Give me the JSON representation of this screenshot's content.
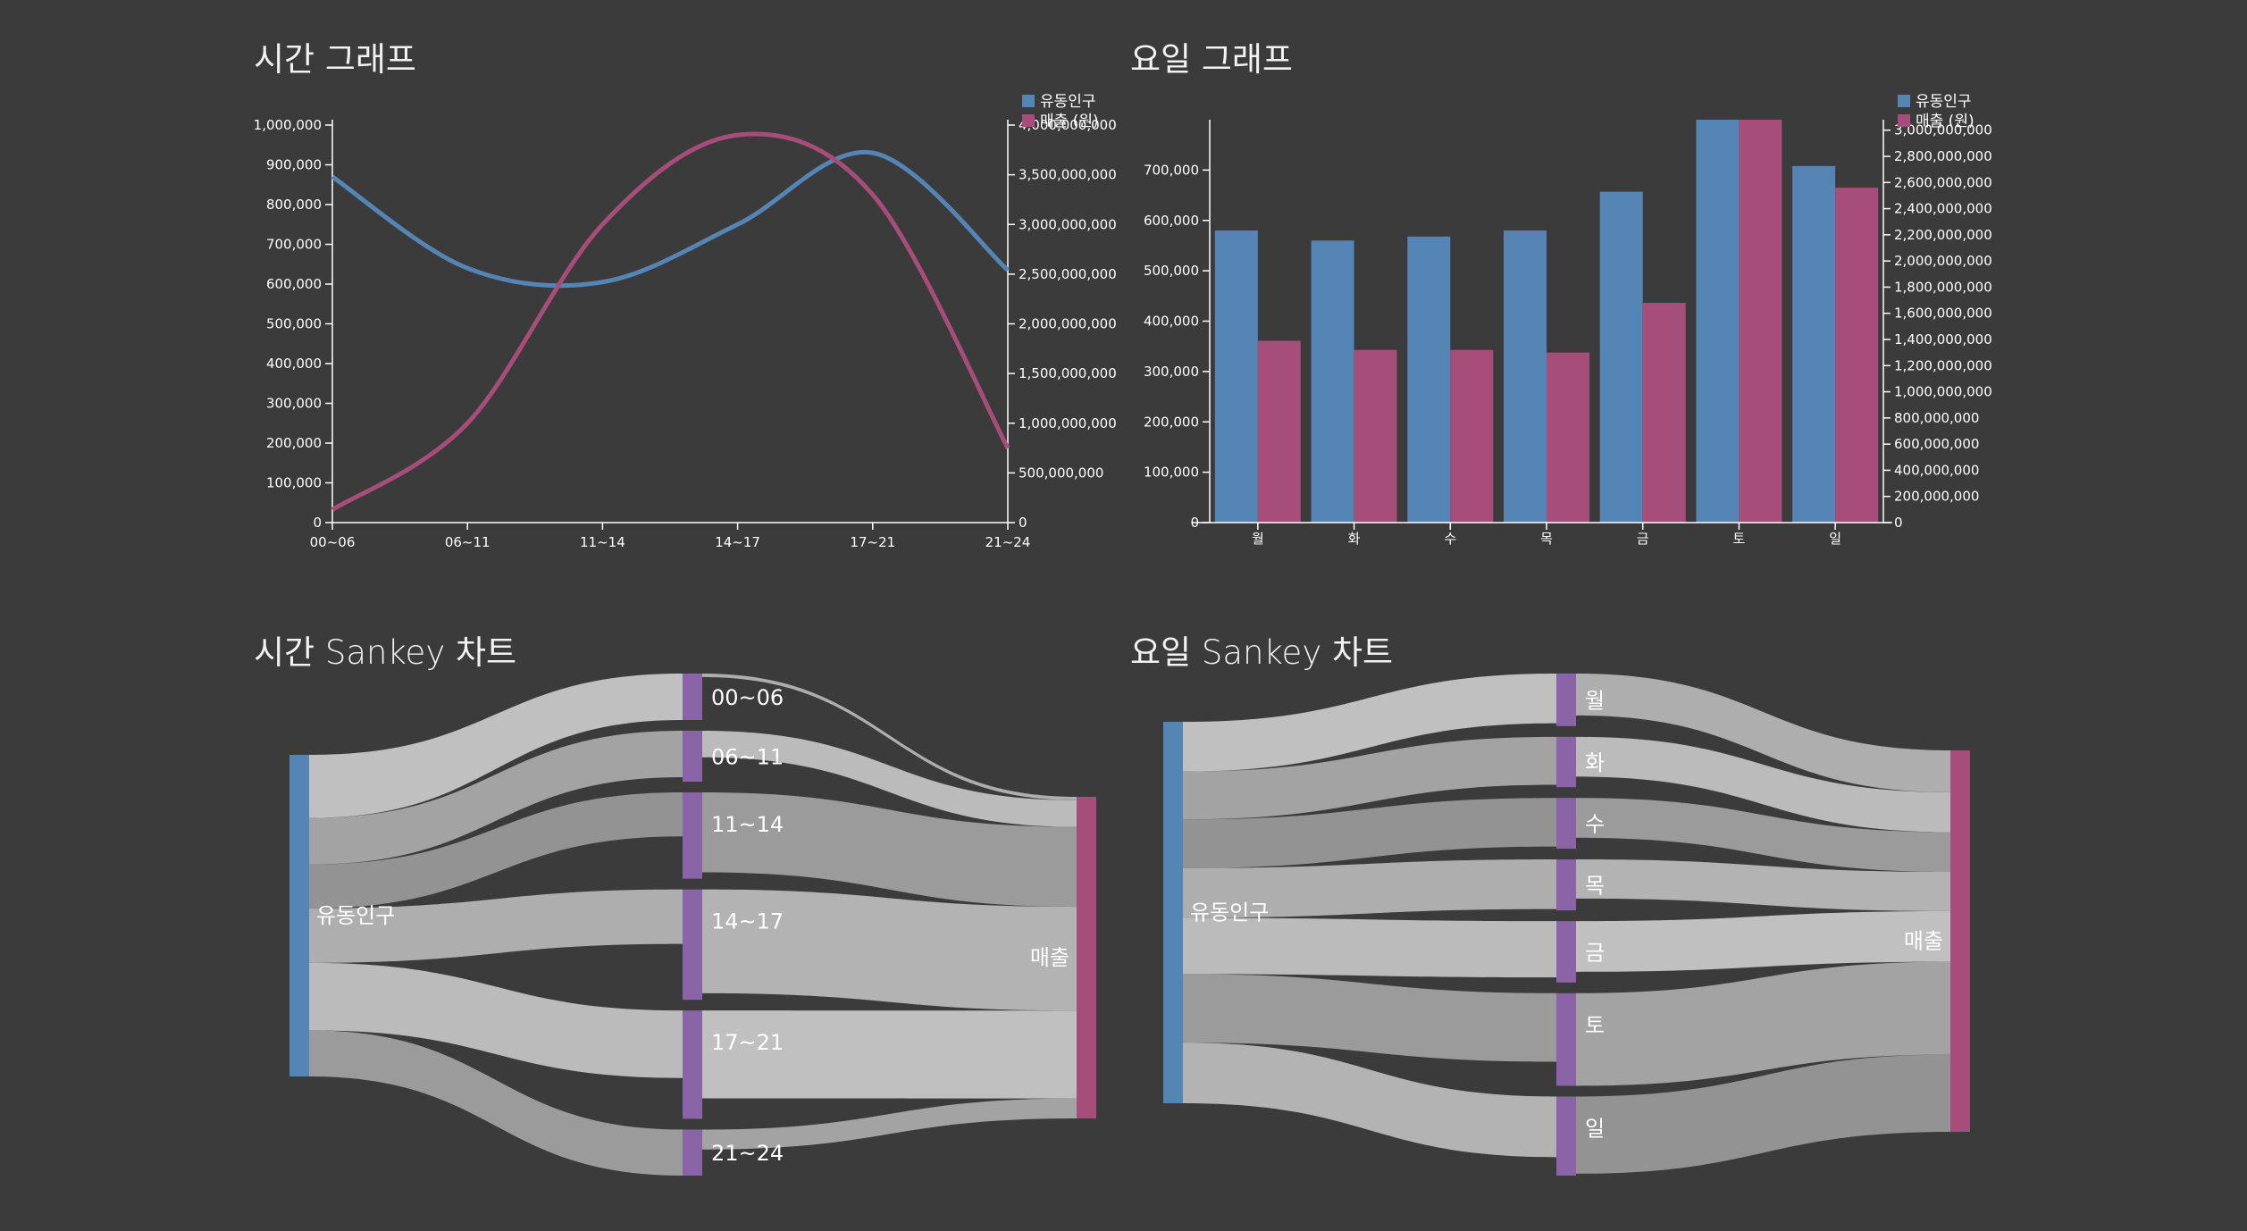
{
  "colors": {
    "background": "#3b3b3b",
    "population": "#5585b5",
    "sales": "#a64d79",
    "node_middle": "#8a64a6",
    "axis": "#ffffff"
  },
  "titles": {
    "time_graph": "시간 그래프",
    "day_graph": "요일 그래프",
    "time_sankey": "시간 Sankey 차트",
    "day_sankey": "요일 Sankey 차트"
  },
  "chart_data": [
    {
      "id": "time_graph",
      "type": "line",
      "title": "시간 그래프",
      "categories": [
        "00~06",
        "06~11",
        "11~14",
        "14~17",
        "17~21",
        "21~24"
      ],
      "y_left": {
        "min": 0,
        "max": 1000000,
        "ticks": [
          0,
          100000,
          200000,
          300000,
          400000,
          500000,
          600000,
          700000,
          800000,
          900000,
          1000000
        ],
        "tick_labels": [
          "0",
          "100,000",
          "200,000",
          "300,000",
          "400,000",
          "500,000",
          "600,000",
          "700,000",
          "800,000",
          "900,000",
          "1,000,000"
        ]
      },
      "y_right": {
        "min": 0,
        "max": 4000000000,
        "ticks": [
          0,
          500000000,
          1000000000,
          1500000000,
          2000000000,
          2500000000,
          3000000000,
          3500000000,
          4000000000
        ],
        "tick_labels": [
          "0",
          "500,000,000",
          "1,000,000,000",
          "1,500,000,000",
          "2,000,000,000",
          "2,500,000,000",
          "3,000,000,000",
          "3,500,000,000",
          "4,000,000,000"
        ]
      },
      "series": [
        {
          "name": "유동인구",
          "axis": "left",
          "values": [
            870000,
            640000,
            605000,
            750000,
            930000,
            635000
          ]
        },
        {
          "name": "매출 (원)",
          "axis": "right",
          "values": [
            130000000,
            1000000000,
            3000000000,
            3900000000,
            3300000000,
            750000000
          ]
        }
      ],
      "legend": "top-right",
      "grid": false
    },
    {
      "id": "day_graph",
      "type": "bar",
      "title": "요일 그래프",
      "categories": [
        "월",
        "화",
        "수",
        "목",
        "금",
        "토",
        "일"
      ],
      "y_left": {
        "min": 0,
        "max": 800000,
        "ticks": [
          0,
          100000,
          200000,
          300000,
          400000,
          500000,
          600000,
          700000
        ],
        "tick_labels": [
          "0",
          "100,000",
          "200,000",
          "300,000",
          "400,000",
          "500,000",
          "600,000",
          "700,000"
        ]
      },
      "y_right": {
        "min": 0,
        "max": 3080000000,
        "ticks": [
          0,
          200000000,
          400000000,
          600000000,
          800000000,
          1000000000,
          1200000000,
          1400000000,
          1600000000,
          1800000000,
          2000000000,
          2200000000,
          2400000000,
          2600000000,
          2800000000,
          3000000000
        ],
        "tick_labels": [
          "0",
          "200,000,000",
          "400,000,000",
          "600,000,000",
          "800,000,000",
          "1,000,000,000",
          "1,200,000,000",
          "1,400,000,000",
          "1,600,000,000",
          "1,800,000,000",
          "2,000,000,000",
          "2,200,000,000",
          "2,400,000,000",
          "2,600,000,000",
          "2,800,000,000",
          "3,000,000,000"
        ]
      },
      "series": [
        {
          "name": "유동인구",
          "axis": "left",
          "values": [
            580000,
            560000,
            568000,
            580000,
            657000,
            800000,
            708000
          ]
        },
        {
          "name": "매출 (원)",
          "axis": "right",
          "values": [
            1390000000,
            1320000000,
            1320000000,
            1300000000,
            1680000000,
            3080000000,
            2560000000
          ]
        }
      ],
      "legend": "top-right",
      "grid": false
    },
    {
      "id": "time_sankey",
      "type": "sankey",
      "title": "시간 Sankey 차트",
      "source": "유동인구",
      "target": "매출",
      "nodes": [
        "00~06",
        "06~11",
        "11~14",
        "14~17",
        "17~21",
        "21~24"
      ],
      "population_flow": [
        870000,
        640000,
        605000,
        750000,
        930000,
        635000
      ],
      "sales_flow": [
        130000000,
        1000000000,
        3000000000,
        3900000000,
        3300000000,
        750000000
      ]
    },
    {
      "id": "day_sankey",
      "type": "sankey",
      "title": "요일 Sankey 차트",
      "source": "유동인구",
      "target": "매출",
      "nodes": [
        "월",
        "화",
        "수",
        "목",
        "금",
        "토",
        "일"
      ],
      "population_flow": [
        580000,
        560000,
        568000,
        580000,
        657000,
        800000,
        708000
      ],
      "sales_flow": [
        1390000000,
        1320000000,
        1320000000,
        1300000000,
        1680000000,
        3080000000,
        2560000000
      ]
    }
  ]
}
